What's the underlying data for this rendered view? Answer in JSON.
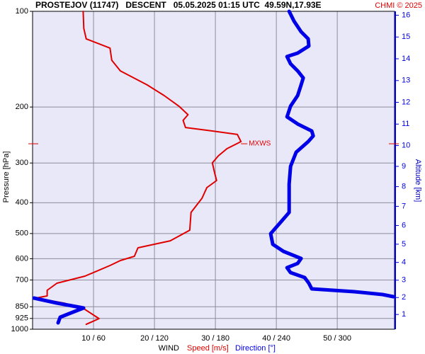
{
  "chart_data": {
    "type": "profile",
    "title": "PROSTEJOV (11747)   DESCENT   05.05.2025 01:15 UTC  49.59N,17.93E",
    "copyright": "CHMI © 2025",
    "ylabel": "Pressure [hPa]",
    "y2label": "Altitude [km]",
    "xlabel": "WIND",
    "ylim": [
      100,
      1000
    ],
    "log_y": true,
    "yticks": [
      100,
      200,
      300,
      400,
      500,
      600,
      700,
      850,
      925,
      1000
    ],
    "xlim": [
      0,
      59.4
    ],
    "x2lim": [
      0,
      356.4
    ],
    "xticks": [
      {
        "value": 10,
        "label": "10 / 60"
      },
      {
        "value": 20,
        "label": "20 / 120"
      },
      {
        "value": 30,
        "label": "30 / 180"
      },
      {
        "value": 40,
        "label": "40 / 240"
      },
      {
        "value": 50,
        "label": "50 / 300"
      }
    ],
    "y2ticks": [
      1,
      2,
      3,
      4,
      5,
      6,
      7,
      8,
      9,
      10,
      11,
      12,
      13,
      14,
      15,
      16
    ],
    "grid": true,
    "series": [
      {
        "name": "Speed [m/s]",
        "color": "#e00000",
        "axis": "x",
        "pressure": [
          100,
          113.1,
          122.1,
          130.5,
          142.5,
          153.9,
          170.4,
          184.1,
          198.7,
          211.4,
          220.3,
          232.0,
          237.9,
          244.0,
          256.9,
          270.4,
          284.7,
          299.7,
          323.6,
          340.7,
          358.6,
          387.3,
          429.1,
          488.0,
          526.9,
          554.6,
          589.6,
          608.1,
          630.4,
          680.8,
          716.6,
          754.3,
          785.9,
          798.0,
          827.3,
          861.9,
          925.9,
          965.0
        ],
        "values": [
          8.3,
          8.4,
          8.8,
          12.7,
          13.0,
          14.4,
          18.8,
          21.6,
          24.0,
          25.5,
          24.7,
          25.1,
          29.5,
          33.6,
          34.2,
          31.9,
          30.5,
          29.5,
          29.9,
          30.2,
          28.6,
          27.8,
          26.0,
          25.8,
          22.6,
          17.3,
          16.7,
          14.4,
          12.7,
          8.6,
          4.0,
          2.4,
          2.4,
          0.5,
          5.1,
          8.4,
          10.9,
          8.8
        ]
      },
      {
        "name": "Direction [°]",
        "color": "#0000e8",
        "axis": "x2",
        "pressure": [
          100,
          107.4,
          116.0,
          122.1,
          128.6,
          135.3,
          138.8,
          146.2,
          153.9,
          162.0,
          170.4,
          184.1,
          198.7,
          214.7,
          226.1,
          237.9,
          246.6,
          256.9,
          277.5,
          307.5,
          349.5,
          429.1,
          463.5,
          500.4,
          540.6,
          568.9,
          599.0,
          620.9,
          640.3,
          663.5,
          687.7,
          716.6,
          746.6,
          762.1,
          777.9,
          790.0,
          793.7,
          798.0,
          827.3,
          857.5,
          888.8,
          916.5,
          954.9
        ],
        "values": [
          252.6,
          257.4,
          264.4,
          271.4,
          272.0,
          261.0,
          250.5,
          254.0,
          261.0,
          266.5,
          264.4,
          261.0,
          254.0,
          250.5,
          261.0,
          274.9,
          276.3,
          271.4,
          259.5,
          254.0,
          252.6,
          252.6,
          243.5,
          234.4,
          236.5,
          247.0,
          264.4,
          261.0,
          250.5,
          254.0,
          267.9,
          272.0,
          274.9,
          316.7,
          344.6,
          355.1,
          null,
          1.4,
          23.7,
          50.2,
          37.7,
          27.2,
          25.1
        ]
      }
    ],
    "mxws": {
      "label": "MXWS",
      "pressure": 261,
      "speed": 34.2,
      "color": "#e00000"
    }
  }
}
